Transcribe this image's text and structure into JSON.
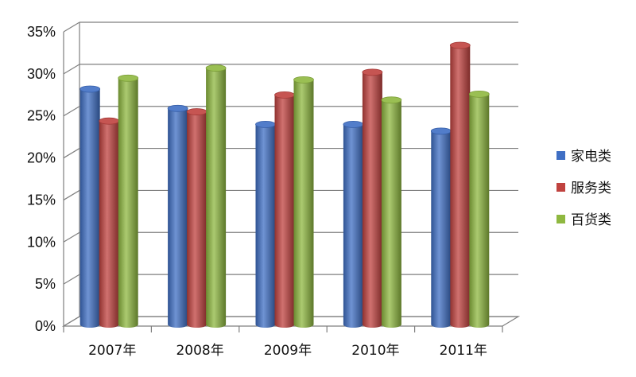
{
  "chart_data": {
    "type": "bar",
    "categories": [
      "2007年",
      "2008年",
      "2009年",
      "2010年",
      "2011年"
    ],
    "series": [
      {
        "name": "家电类",
        "color": "#3f6fc4",
        "values": [
          28,
          25.7,
          23.8,
          23.8,
          23
        ]
      },
      {
        "name": "服务类",
        "color": "#c0423f",
        "values": [
          24.2,
          25.3,
          27.3,
          30,
          33.2
        ]
      },
      {
        "name": "百货类",
        "color": "#8fb840",
        "values": [
          29.3,
          30.5,
          29.1,
          26.7,
          27.4
        ]
      }
    ],
    "y_ticks": [
      "0%",
      "5%",
      "10%",
      "15%",
      "20%",
      "25%",
      "30%",
      "35%"
    ],
    "ylim": [
      0,
      35
    ],
    "grid": true,
    "legend_position": "right"
  }
}
